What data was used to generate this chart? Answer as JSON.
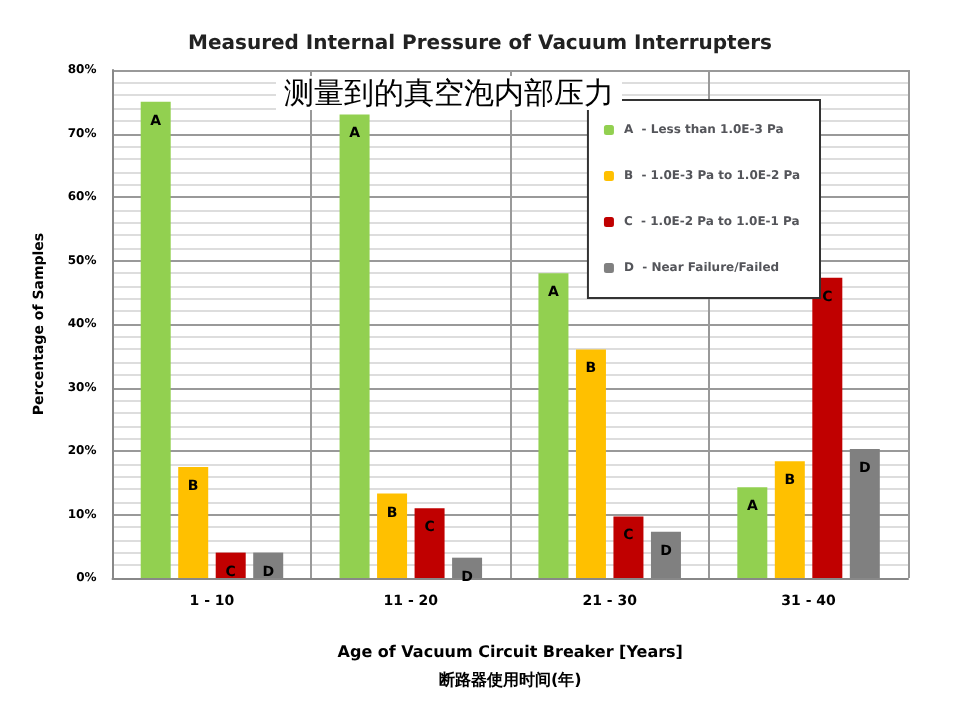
{
  "chart_data": {
    "type": "bar",
    "title": "Measured Internal Pressure of Vacuum Interrupters",
    "subtitle": "测量到的真空泡内部压力",
    "xlabel": "Age of Vacuum Circuit Breaker [Years]\n断路器使用时间(年)",
    "ylabel": "Percentage of Samples",
    "categories": [
      "1 - 10",
      "11 - 20",
      "21 - 30",
      "31 - 40"
    ],
    "series": [
      {
        "name": "A  - Less than 1.0E-3 Pa",
        "color": "#92d050",
        "values": [
          75,
          73,
          48,
          14.3
        ]
      },
      {
        "name": "B  - 1.0E-3 Pa to 1.0E-2 Pa",
        "color": "#ffc000",
        "values": [
          17.5,
          13.3,
          36,
          18.4
        ]
      },
      {
        "name": "C  - 1.0E-2 Pa to 1.0E-1 Pa",
        "color": "#c00000",
        "values": [
          4,
          11,
          9.7,
          47.3
        ]
      },
      {
        "name": "D  - Near Failure/Failed",
        "color": "#808080",
        "values": [
          4,
          3.2,
          7.3,
          20.3
        ]
      }
    ],
    "annotations": [
      "A",
      "A",
      "A",
      "A",
      "B",
      "B",
      "B",
      "B",
      "C",
      "C",
      "C",
      "C",
      "D",
      "D",
      "D",
      "D"
    ],
    "ylim": [
      0,
      80
    ],
    "yticks": [
      {
        "value": 0,
        "label": "0%"
      },
      {
        "value": 10,
        "label": "10%"
      },
      {
        "value": 20,
        "label": "20%"
      },
      {
        "value": 30,
        "label": "30%"
      },
      {
        "value": 40,
        "label": "40%"
      },
      {
        "value": 50,
        "label": "50%"
      },
      {
        "value": 60,
        "label": "60%"
      },
      {
        "value": 70,
        "label": "70%"
      },
      {
        "value": 80,
        "label": "80%"
      }
    ],
    "grid": true,
    "legend": "top right"
  }
}
